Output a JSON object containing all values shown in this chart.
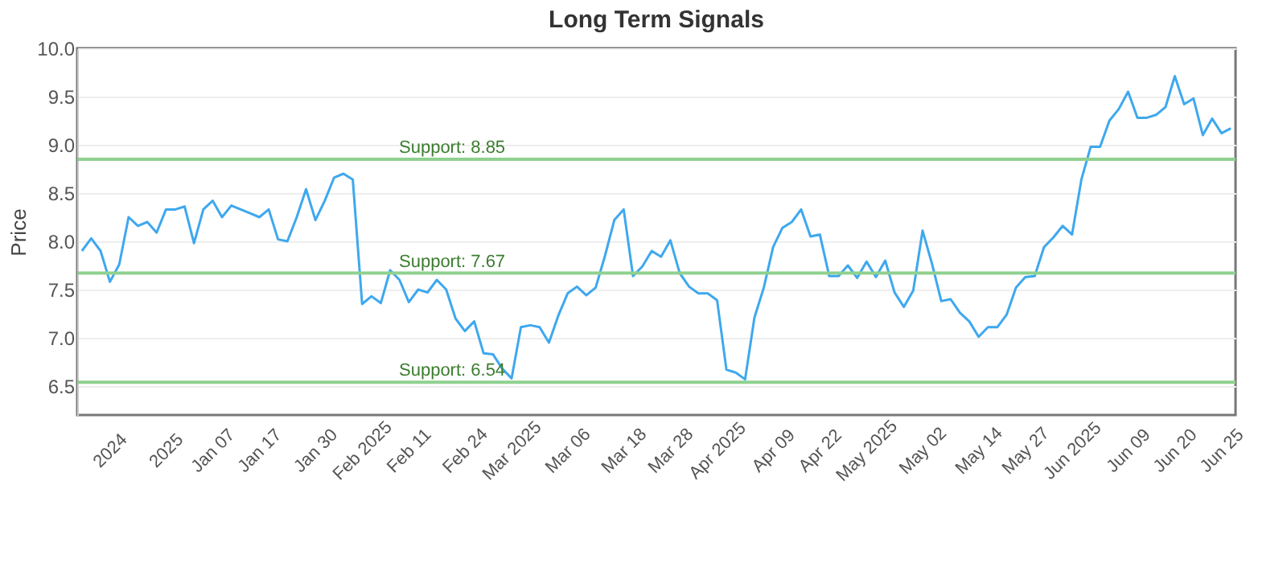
{
  "chart_data": {
    "type": "line",
    "title": "Long Term Signals",
    "ylabel": "Price",
    "categories": [
      null,
      null,
      null,
      "2024",
      null,
      null,
      null,
      null,
      null,
      "2025",
      null,
      null,
      null,
      null,
      "Jan 07",
      null,
      null,
      null,
      null,
      "Jan 17",
      null,
      null,
      null,
      null,
      null,
      "Jan 30",
      null,
      null,
      null,
      null,
      "Feb 2025",
      null,
      null,
      null,
      null,
      "Feb 11",
      null,
      null,
      null,
      null,
      null,
      "Feb 24",
      null,
      null,
      null,
      null,
      "Mar 2025",
      null,
      null,
      null,
      null,
      null,
      "Mar 06",
      null,
      null,
      null,
      null,
      null,
      "Mar 18",
      null,
      null,
      null,
      null,
      "Mar 28",
      null,
      null,
      null,
      null,
      "Apr 2025",
      null,
      null,
      null,
      null,
      null,
      "Apr 09",
      null,
      null,
      null,
      null,
      "Apr 22",
      null,
      null,
      null,
      null,
      "May 2025",
      null,
      null,
      null,
      null,
      null,
      "May 02",
      null,
      null,
      null,
      null,
      null,
      "May 14",
      null,
      null,
      null,
      null,
      "May 27",
      null,
      null,
      null,
      null,
      "Jun 2025",
      null,
      null,
      null,
      null,
      null,
      "Jun 09",
      null,
      null,
      null,
      null,
      "Jun 20",
      null,
      null,
      null,
      null,
      "Jun 25",
      null
    ],
    "series": [
      {
        "color": "#3ea8ee",
        "values": [
          7.9,
          8.03,
          7.9,
          7.58,
          7.76,
          8.25,
          8.16,
          8.2,
          8.09,
          8.33,
          8.33,
          8.36,
          7.98,
          8.33,
          8.42,
          8.25,
          8.37,
          8.33,
          8.29,
          8.25,
          8.33,
          8.02,
          8.0,
          8.25,
          8.54,
          8.22,
          8.42,
          8.66,
          8.7,
          8.64,
          7.35,
          7.43,
          7.36,
          7.7,
          7.6,
          7.37,
          7.5,
          7.47,
          7.6,
          7.5,
          7.2,
          7.07,
          7.17,
          6.84,
          6.83,
          6.68,
          6.58,
          7.11,
          7.13,
          7.11,
          6.95,
          7.23,
          7.46,
          7.53,
          7.44,
          7.52,
          7.85,
          8.22,
          8.33,
          7.64,
          7.74,
          7.9,
          7.84,
          8.01,
          7.67,
          7.53,
          7.46,
          7.46,
          7.39,
          6.67,
          6.64,
          6.57,
          7.21,
          7.52,
          7.94,
          8.14,
          8.2,
          8.33,
          8.05,
          8.07,
          7.64,
          7.64,
          7.75,
          7.62,
          7.79,
          7.63,
          7.8,
          7.47,
          7.32,
          7.49,
          8.11,
          7.77,
          7.38,
          7.4,
          7.26,
          7.17,
          7.01,
          7.11,
          7.11,
          7.24,
          7.52,
          7.63,
          7.64,
          7.94,
          8.04,
          8.16,
          8.07,
          8.64,
          8.98,
          8.98,
          9.25,
          9.37,
          9.55,
          9.28,
          9.28,
          9.31,
          9.39,
          9.71,
          9.42,
          9.48,
          9.1,
          9.27,
          9.12,
          9.17
        ]
      }
    ],
    "ylim": [
      6.2,
      10.0
    ],
    "yticks": [
      6.5,
      {
        "value": 7,
        "label": "7.0"
      },
      7.5,
      {
        "value": 8,
        "label": "8.0"
      },
      8.5,
      {
        "value": 9,
        "label": "9.0"
      },
      9.5,
      {
        "value": 10,
        "label": "10.0"
      }
    ],
    "grid": "y",
    "marker": "none",
    "line_style": "solid",
    "ref_lines": [
      {
        "axis": "y",
        "value": 8.85,
        "label": "Support: 8.85",
        "color": "#8fd18f"
      },
      {
        "axis": "y",
        "value": 7.67,
        "label": "Support: 7.67",
        "color": "#8fd18f"
      },
      {
        "axis": "y",
        "value": 6.54,
        "label": "Support: 6.54",
        "color": "#8fd18f"
      }
    ]
  }
}
